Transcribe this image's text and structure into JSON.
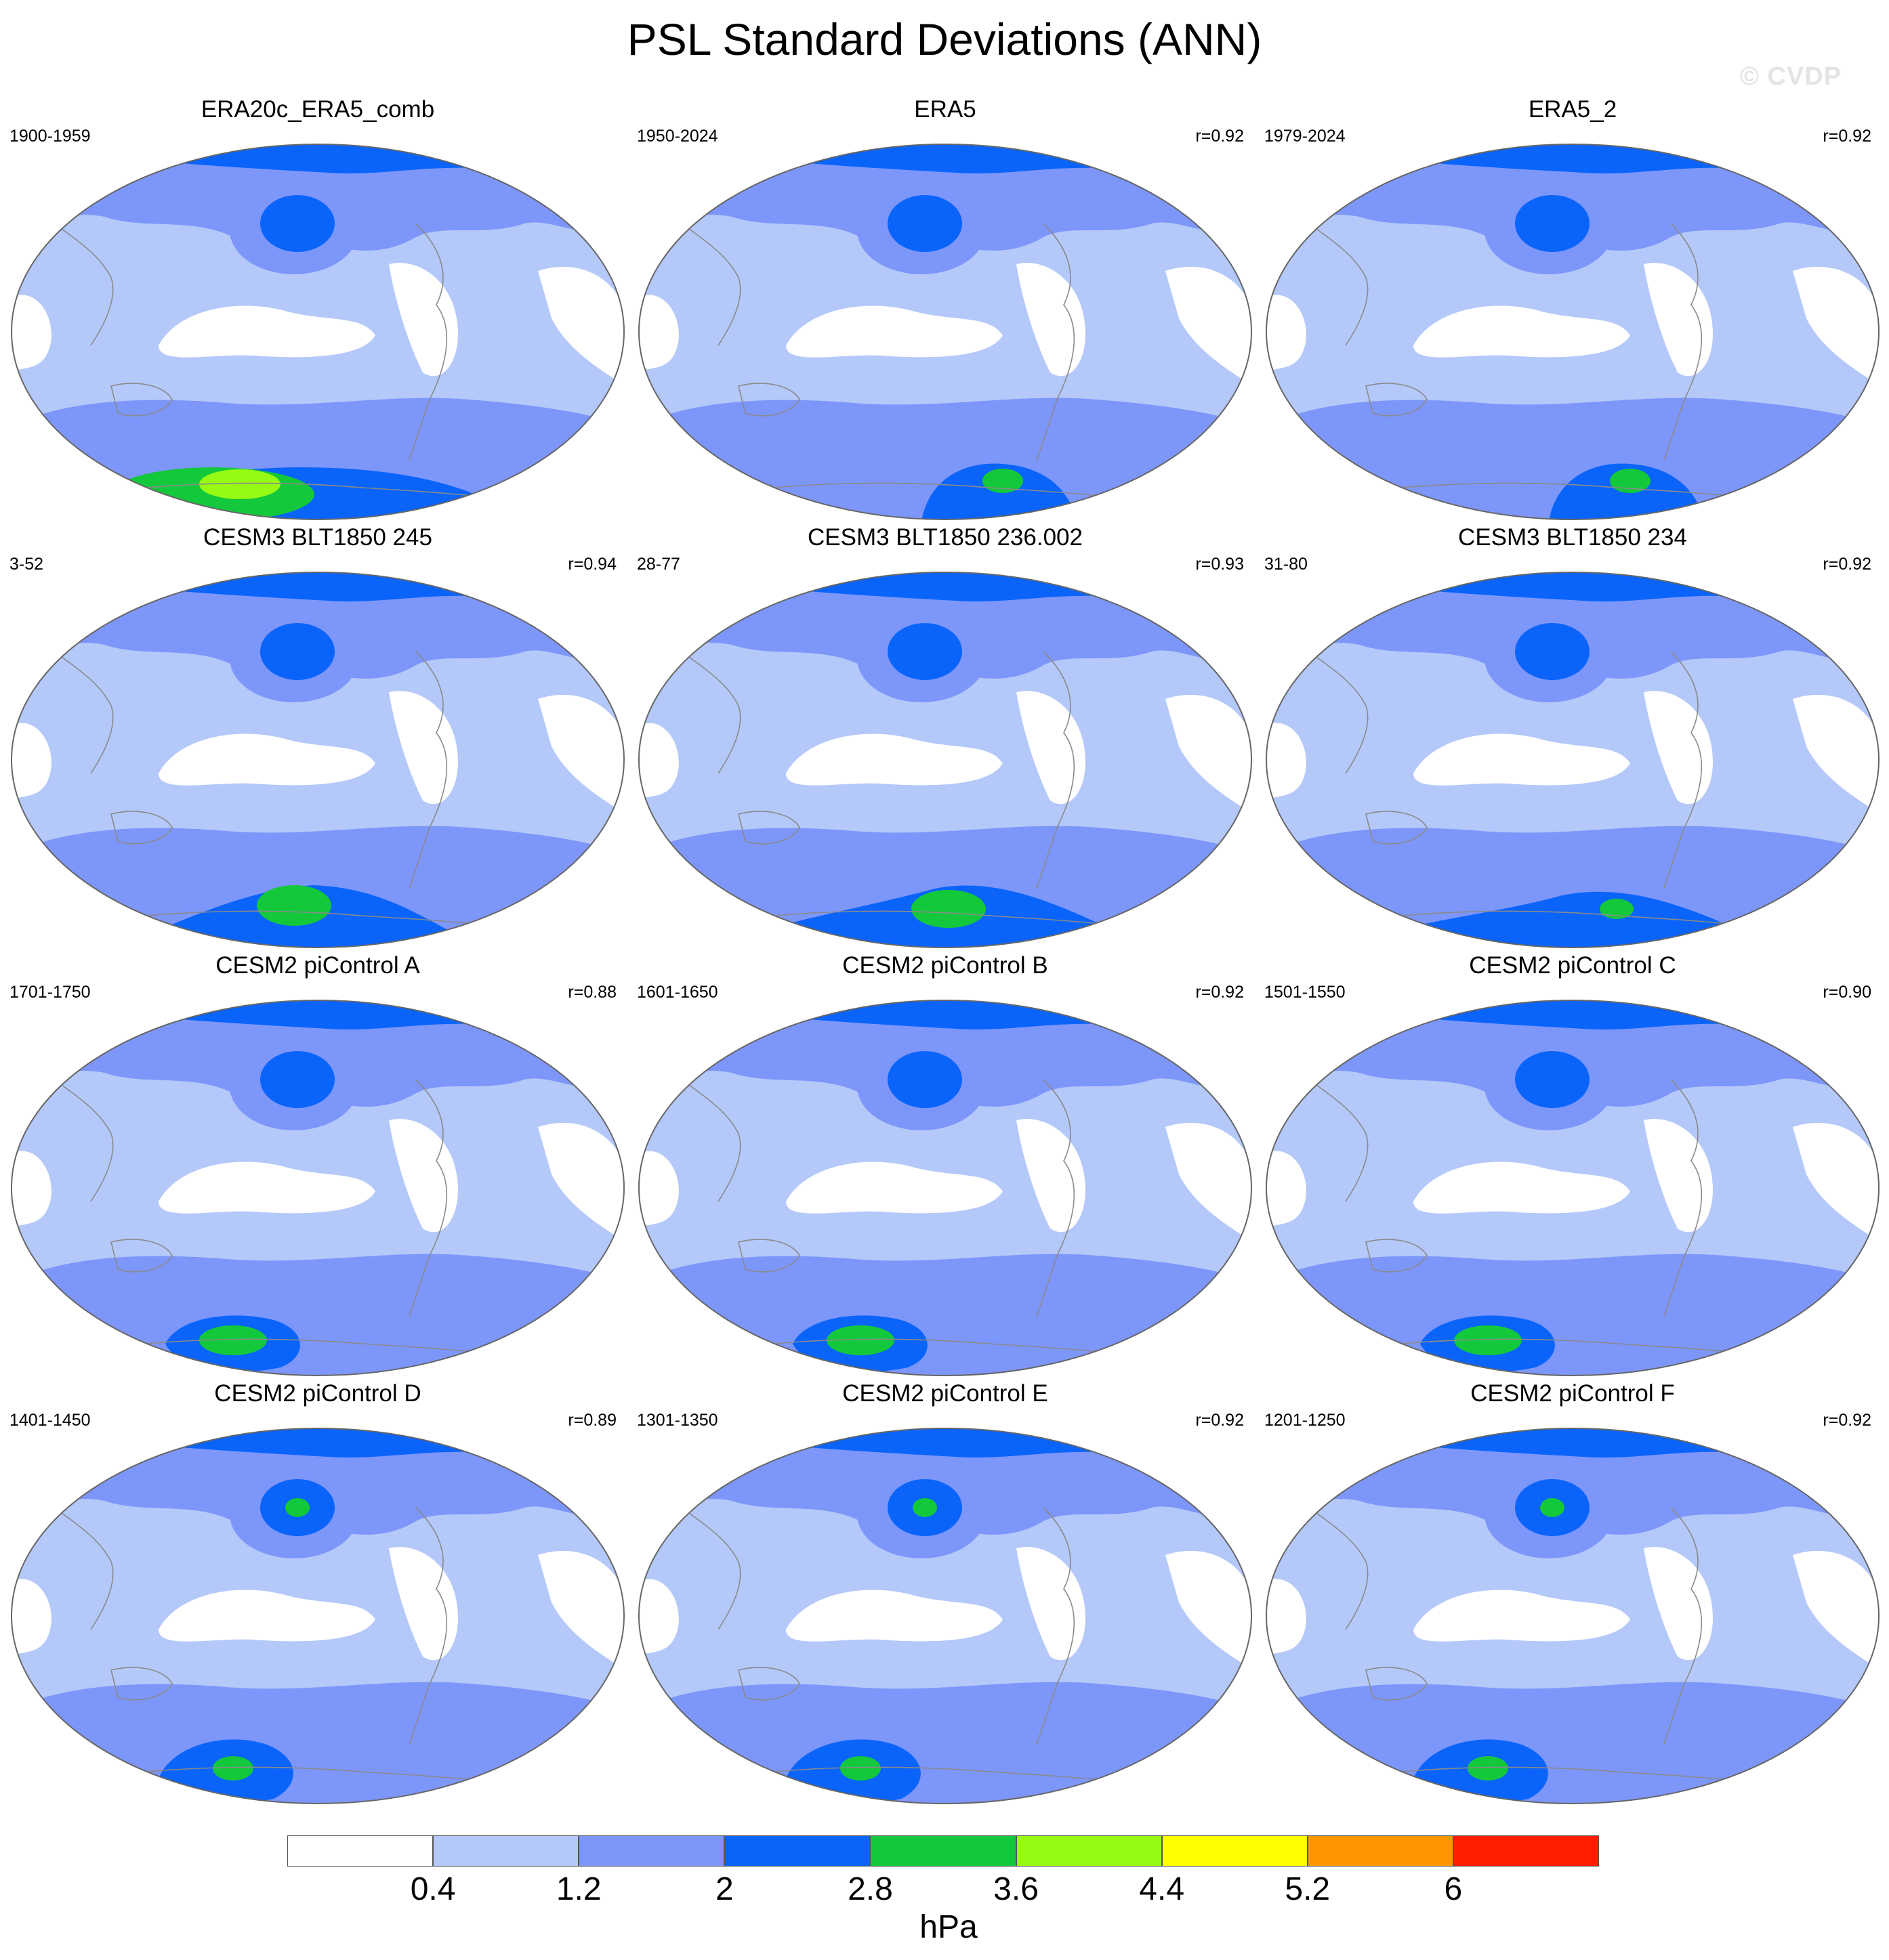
{
  "title": "PSL Standard Deviations (ANN)",
  "watermark": "© CVDP",
  "panels": [
    {
      "title": "ERA20c_ERA5_comb",
      "years": "1900-1959",
      "r": "",
      "variant": "era20c"
    },
    {
      "title": "ERA5",
      "years": "1950-2024",
      "r": "r=0.92",
      "variant": "era5"
    },
    {
      "title": "ERA5_2",
      "years": "1979-2024",
      "r": "r=0.92",
      "variant": "era5"
    },
    {
      "title": "CESM3 BLT1850 245",
      "years": "3-52",
      "r": "r=0.94",
      "variant": "cesm3a"
    },
    {
      "title": "CESM3 BLT1850 236.002",
      "years": "28-77",
      "r": "r=0.93",
      "variant": "cesm3b"
    },
    {
      "title": "CESM3 BLT1850 234",
      "years": "31-80",
      "r": "r=0.92",
      "variant": "cesm3c"
    },
    {
      "title": "CESM2 piControl A",
      "years": "1701-1750",
      "r": "r=0.88",
      "variant": "cesm2"
    },
    {
      "title": "CESM2 piControl B",
      "years": "1601-1650",
      "r": "r=0.92",
      "variant": "cesm2"
    },
    {
      "title": "CESM2 piControl C",
      "years": "1501-1550",
      "r": "r=0.90",
      "variant": "cesm2"
    },
    {
      "title": "CESM2 piControl D",
      "years": "1401-1450",
      "r": "r=0.89",
      "variant": "cesm2n"
    },
    {
      "title": "CESM2 piControl E",
      "years": "1301-1350",
      "r": "r=0.92",
      "variant": "cesm2n"
    },
    {
      "title": "CESM2 piControl F",
      "years": "1201-1250",
      "r": "r=0.92",
      "variant": "cesm2n"
    }
  ],
  "colorbar": {
    "units": "hPa",
    "levels": [
      "0.4",
      "1.2",
      "2",
      "2.8",
      "3.6",
      "4.4",
      "5.2",
      "6"
    ],
    "colors": [
      "#ffffff",
      "#b4c8fa",
      "#7d96fa",
      "#0a64fa",
      "#14c83c",
      "#96fa14",
      "#ffff00",
      "#ff9600",
      "#ff1e00"
    ]
  }
}
